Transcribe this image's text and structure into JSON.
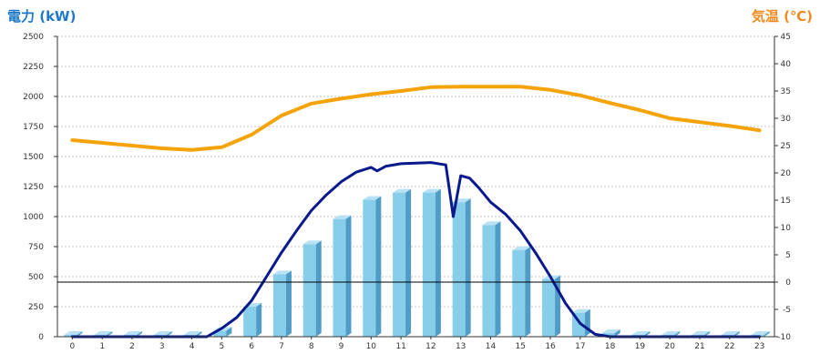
{
  "chart_data": {
    "type": "bar",
    "ylabel_left": "電力 (kW)",
    "ylabel_right": "気温 (℃)",
    "categories": [
      "0",
      "1",
      "2",
      "3",
      "4",
      "5",
      "6",
      "7",
      "8",
      "9",
      "10",
      "11",
      "12",
      "13",
      "14",
      "15",
      "16",
      "17",
      "18",
      "19",
      "20",
      "21",
      "22",
      "23"
    ],
    "ylim_left": [
      0,
      2500
    ],
    "yticks_left": [
      0,
      250,
      500,
      750,
      1000,
      1250,
      1500,
      1750,
      2000,
      2250,
      2500
    ],
    "ylim_right": [
      -10,
      45
    ],
    "yticks_right": [
      -10,
      -5,
      0,
      5,
      10,
      15,
      20,
      25,
      30,
      35,
      40,
      45
    ],
    "grid": true,
    "series": [
      {
        "chart_type": "bar",
        "axis": "left",
        "color": "#7ec8e8",
        "values": [
          15,
          15,
          15,
          15,
          15,
          50,
          250,
          520,
          770,
          980,
          1140,
          1200,
          1200,
          1120,
          930,
          720,
          480,
          200,
          30,
          15,
          15,
          15,
          15,
          15
        ]
      },
      {
        "chart_type": "line",
        "axis": "left",
        "color": "#0a1a8c",
        "x": [
          0,
          4.5,
          5,
          5.5,
          6,
          6.5,
          7,
          7.5,
          8,
          8.5,
          9,
          9.5,
          10,
          10.2,
          10.5,
          11,
          11.5,
          12,
          12.5,
          12.75,
          13,
          13.3,
          13.6,
          14,
          14.5,
          15,
          15.5,
          16,
          16.5,
          17,
          17.5,
          18,
          23
        ],
        "values": [
          0,
          0,
          70,
          160,
          300,
          500,
          700,
          880,
          1050,
          1180,
          1290,
          1370,
          1410,
          1380,
          1420,
          1440,
          1445,
          1450,
          1430,
          1000,
          1340,
          1320,
          1240,
          1120,
          1020,
          880,
          700,
          500,
          280,
          110,
          20,
          0,
          0
        ]
      },
      {
        "chart_type": "line",
        "axis": "right",
        "color": "#f5a30a",
        "x": [
          0,
          1,
          2,
          3,
          4,
          5,
          6,
          7,
          8,
          9,
          10,
          11,
          12,
          13,
          14,
          15,
          16,
          17,
          18,
          19,
          20,
          21,
          22,
          23
        ],
        "values": [
          26,
          25.5,
          25,
          24.5,
          24.2,
          24.7,
          27,
          30.5,
          32.7,
          33.6,
          34.4,
          35,
          35.7,
          35.8,
          35.8,
          35.8,
          35.2,
          34.2,
          32.8,
          31.5,
          30,
          29.3,
          28.6,
          27.8
        ]
      }
    ]
  }
}
